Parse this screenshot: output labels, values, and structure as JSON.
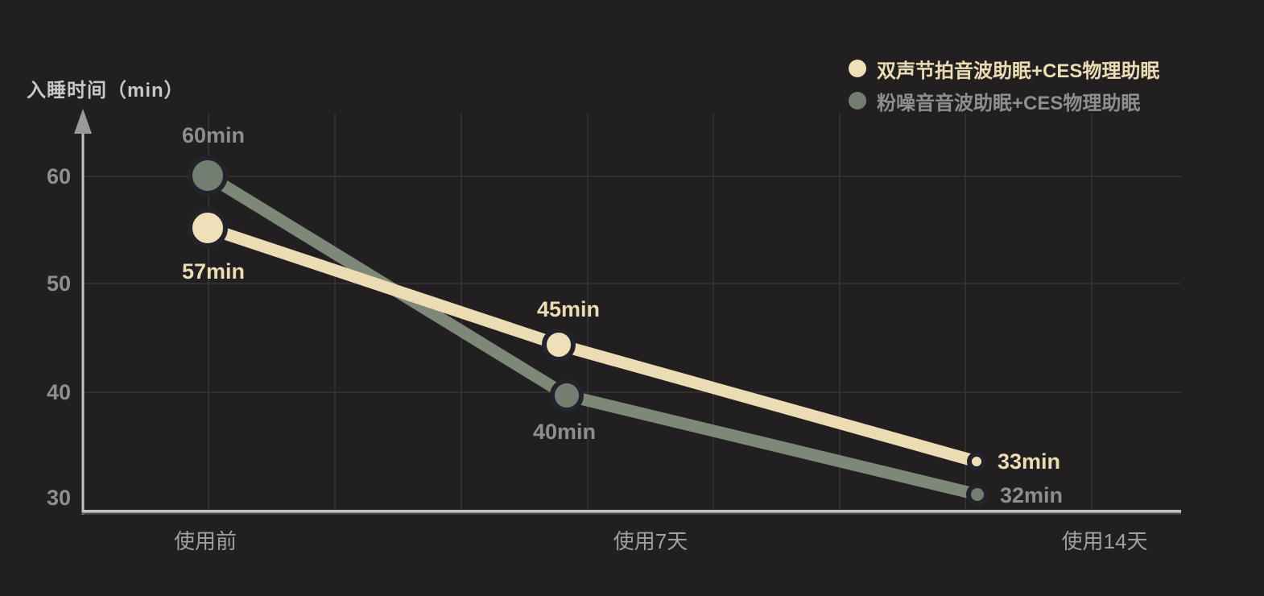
{
  "chart_data": {
    "type": "line",
    "title": "入睡时间（min）",
    "categories": [
      "使用前",
      "使用7天",
      "使用14天"
    ],
    "series": [
      {
        "name": "双声节拍音波助眠+CES物理助眠",
        "values": [
          57,
          45,
          33
        ],
        "point_labels": [
          "57min",
          "45min",
          "33min"
        ],
        "line_color": "#ecdcb3",
        "marker_color": "#efe0b8",
        "label_color": "#ecdcb4"
      },
      {
        "name": "粉噪音音波助眠+CES物理助眠",
        "values": [
          60,
          40,
          32
        ],
        "point_labels": [
          "60min",
          "40min",
          "32min"
        ],
        "line_color": "#7e8879",
        "marker_color": "#747e70",
        "label_color": "#8a918a"
      }
    ],
    "y_axis": {
      "ticks": [
        60,
        50,
        40,
        30
      ],
      "range": [
        28,
        66
      ],
      "unit": "min"
    },
    "grid": "on",
    "legend_position": "top-right"
  },
  "colors": {
    "background": "#211f1f",
    "grid": "#383535",
    "axis": "#c2c2c2",
    "axis_shadow": "#555252",
    "axis_arrow": "#9a9a9a",
    "marker_ring": "#23232b",
    "y_tick_text": "#8f8f8f",
    "x_tick_text": "#a0a0a0",
    "title_text": "#c8c8c8"
  }
}
